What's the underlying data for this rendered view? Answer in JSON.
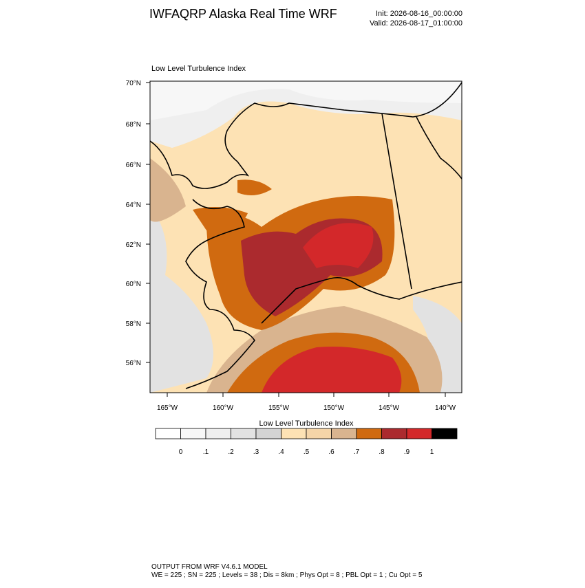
{
  "header": {
    "title": "IWFAQRP Alaska Real Time WRF",
    "init": "Init: 2026-08-16_00:00:00",
    "valid": "Valid: 2026-08-17_01:00:00"
  },
  "map": {
    "title": "Low Level Turbulence Index",
    "lat_labels": [
      "70°N",
      "68°N",
      "66°N",
      "64°N",
      "62°N",
      "60°N",
      "58°N",
      "56°N"
    ],
    "lon_labels": [
      "165°W",
      "160°W",
      "155°W",
      "150°W",
      "145°W",
      "140°W"
    ]
  },
  "colorbar": {
    "title": "Low Level Turbulence Index",
    "colors": [
      "#ffffff",
      "#f7f7f7",
      "#efefef",
      "#e2e2e2",
      "#d4d4d4",
      "#fde2b4",
      "#f5d5a8",
      "#d9b48f",
      "#d06a10",
      "#ab2a2e",
      "#d3282a",
      "#000000"
    ],
    "labels": [
      "0",
      ".1",
      ".2",
      ".3",
      ".4",
      ".5",
      ".6",
      ".7",
      ".8",
      ".9",
      "1"
    ]
  },
  "footer": {
    "lines": [
      "OUTPUT FROM WRF V4.6.1 MODEL",
      "WE = 225 ; SN = 225 ; Levels = 38 ; Dis = 8km ; Phys Opt = 8 ; PBL Opt = 1 ; Cu Opt = 5"
    ]
  }
}
